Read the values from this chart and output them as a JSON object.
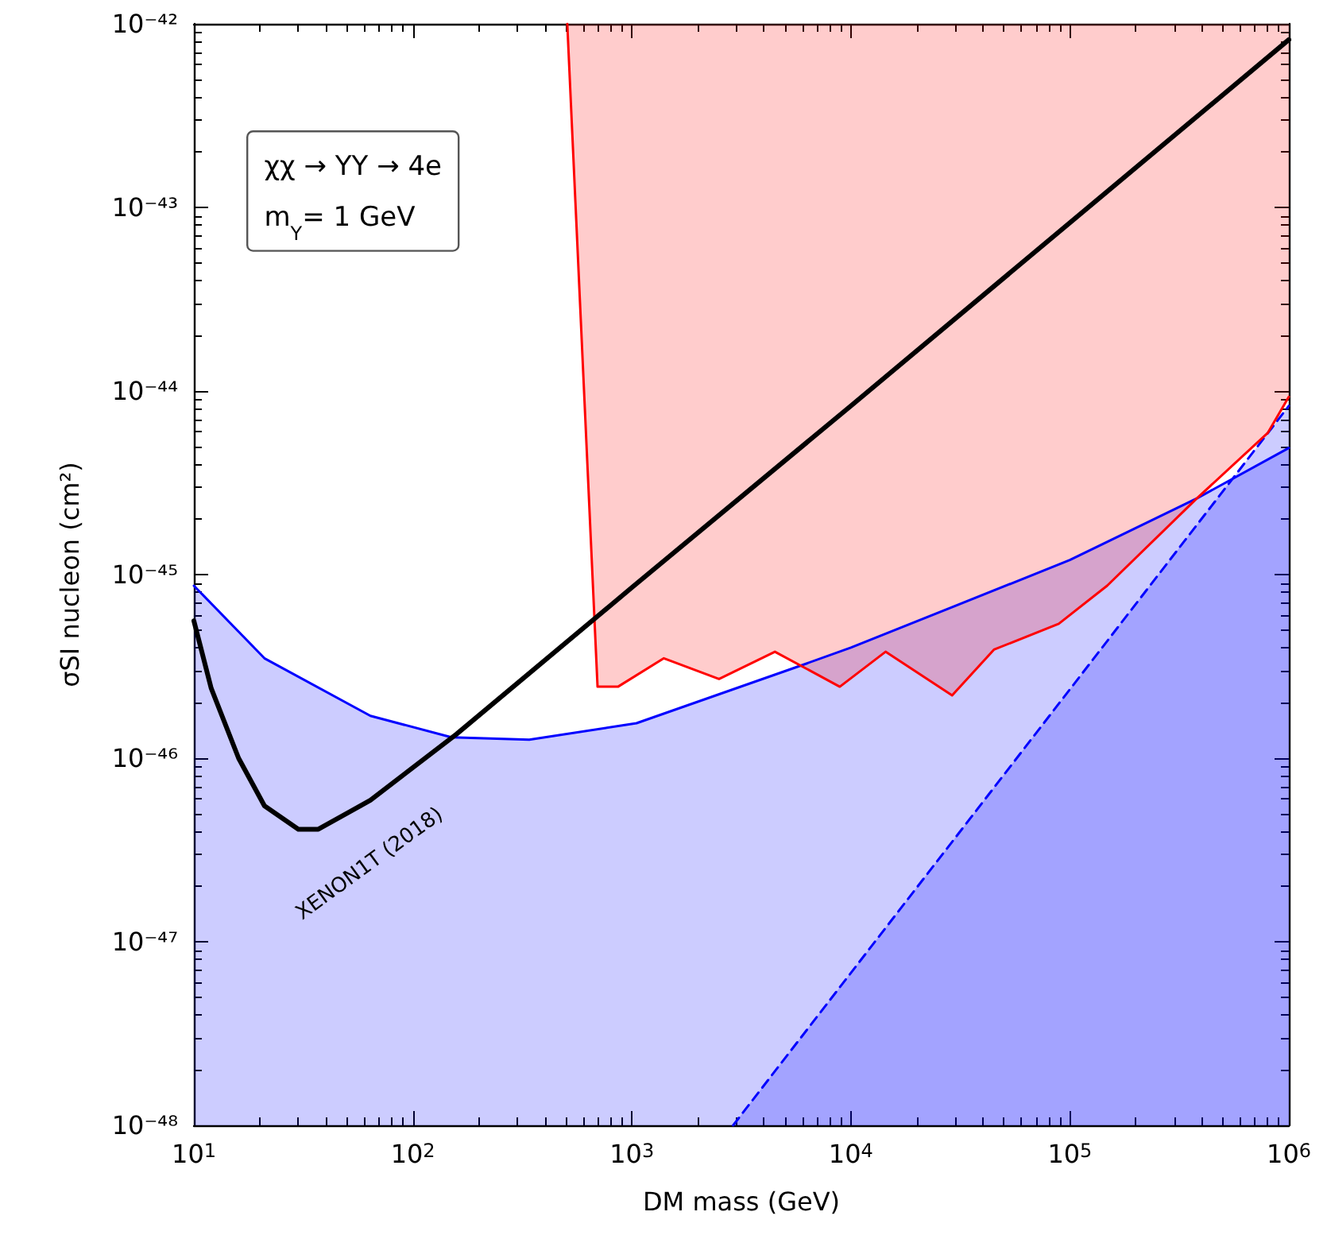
{
  "chart_data": {
    "type": "line",
    "xlabel": "DM mass (GeV)",
    "ylabel": "σSI nucleon (cm²)",
    "log": "xy",
    "grid": false,
    "marker": "none",
    "xlim": [
      10,
      1000000
    ],
    "ylim": [
      1e-48,
      1e-42
    ],
    "xticks": [
      {
        "value": 10,
        "label": "10$^{1}$"
      },
      {
        "value": 100,
        "label": "10$^{2}$"
      },
      {
        "value": 1000,
        "label": "10$^{3}$"
      },
      {
        "value": 10000,
        "label": "10$^{4}$"
      },
      {
        "value": 100000,
        "label": "10$^{5}$"
      },
      {
        "value": 1000000,
        "label": "10$^{6}$"
      }
    ],
    "yticks": [
      {
        "value": 1e-48,
        "label": "10⁻⁴⁸"
      },
      {
        "value": 1e-47,
        "label": "10⁻⁴⁷"
      },
      {
        "value": 1e-46,
        "label": "10⁻⁴⁶"
      },
      {
        "value": 1e-45,
        "label": "10⁻⁴⁵"
      },
      {
        "value": 1e-44,
        "label": "10⁻⁴⁴"
      },
      {
        "value": 1e-43,
        "label": "10⁻⁴³"
      },
      {
        "value": 1e-42,
        "label": "10⁻⁴²"
      }
    ],
    "series": [
      {
        "color": "#0000ff",
        "line_style": "dashed",
        "x": [
          2900,
          1000000
        ],
        "values": [
          1e-48,
          8.3e-45
        ],
        "lower": [
          1e-48,
          1e-48
        ],
        "upper": [
          1e-48,
          8.3e-45
        ]
      },
      {
        "color": "#0000ff",
        "line_style": "solid",
        "x": [
          10,
          21,
          64,
          150,
          340,
          1050,
          5500,
          10000,
          100000,
          380000,
          1000000
        ],
        "values": [
          8.7e-46,
          3.5e-46,
          1.7e-46,
          1.3e-46,
          1.26e-46,
          1.55e-46,
          3.1e-46,
          4e-46,
          1.2e-45,
          2.6e-45,
          4.9e-45
        ],
        "lower": [
          1e-48,
          1e-48,
          1e-48,
          1e-48,
          1e-48,
          1e-48,
          1e-48,
          1e-48,
          1e-48,
          1e-48,
          1e-48
        ],
        "upper": [
          8.7e-46,
          3.5e-46,
          1.7e-46,
          1.3e-46,
          1.26e-46,
          1.55e-46,
          3.1e-46,
          4e-46,
          1.2e-45,
          2.6e-45,
          4.9e-45
        ]
      },
      {
        "color": "#ff0000",
        "line_style": "solid",
        "x": [
          507,
          697,
          864,
          1400,
          2500,
          4500,
          8900,
          14400,
          29000,
          45000,
          89000,
          148000,
          380000,
          800000,
          1000000
        ],
        "values": [
          1e-42,
          2.45e-46,
          2.45e-46,
          3.5e-46,
          2.7e-46,
          3.8e-46,
          2.45e-46,
          3.8e-46,
          2.2e-46,
          3.9e-46,
          5.4e-46,
          8.7e-46,
          2.6e-45,
          5.9e-45,
          9.3e-45
        ],
        "lower": [
          1e-42,
          2.45e-46,
          2.45e-46,
          3.5e-46,
          2.7e-46,
          3.8e-46,
          2.45e-46,
          3.8e-46,
          2.2e-46,
          3.9e-46,
          5.4e-46,
          8.7e-46,
          2.6e-45,
          5.9e-45,
          9.3e-45
        ],
        "upper": [
          1e-42,
          1e-42,
          1e-42,
          1e-42,
          1e-42,
          1e-42,
          1e-42,
          1e-42,
          1e-42,
          1e-42,
          1e-42,
          1e-42,
          1e-42,
          1e-42,
          1e-42
        ]
      },
      {
        "name": "XENON1T (2018)",
        "color": "#000000",
        "line_style": "solid",
        "x": [
          10,
          12,
          16,
          21,
          30,
          37,
          64,
          158,
          1000,
          10000,
          1000000
        ],
        "values": [
          5.6e-46,
          2.4e-46,
          1e-46,
          5.5e-47,
          4.1e-47,
          4.1e-47,
          5.9e-47,
          1.35e-46,
          8.5e-46,
          8.3e-45,
          8.2e-43
        ]
      }
    ],
    "annotations": [
      "χχ → YY → 4e",
      "m$_{Y}$= 1 GeV"
    ]
  }
}
